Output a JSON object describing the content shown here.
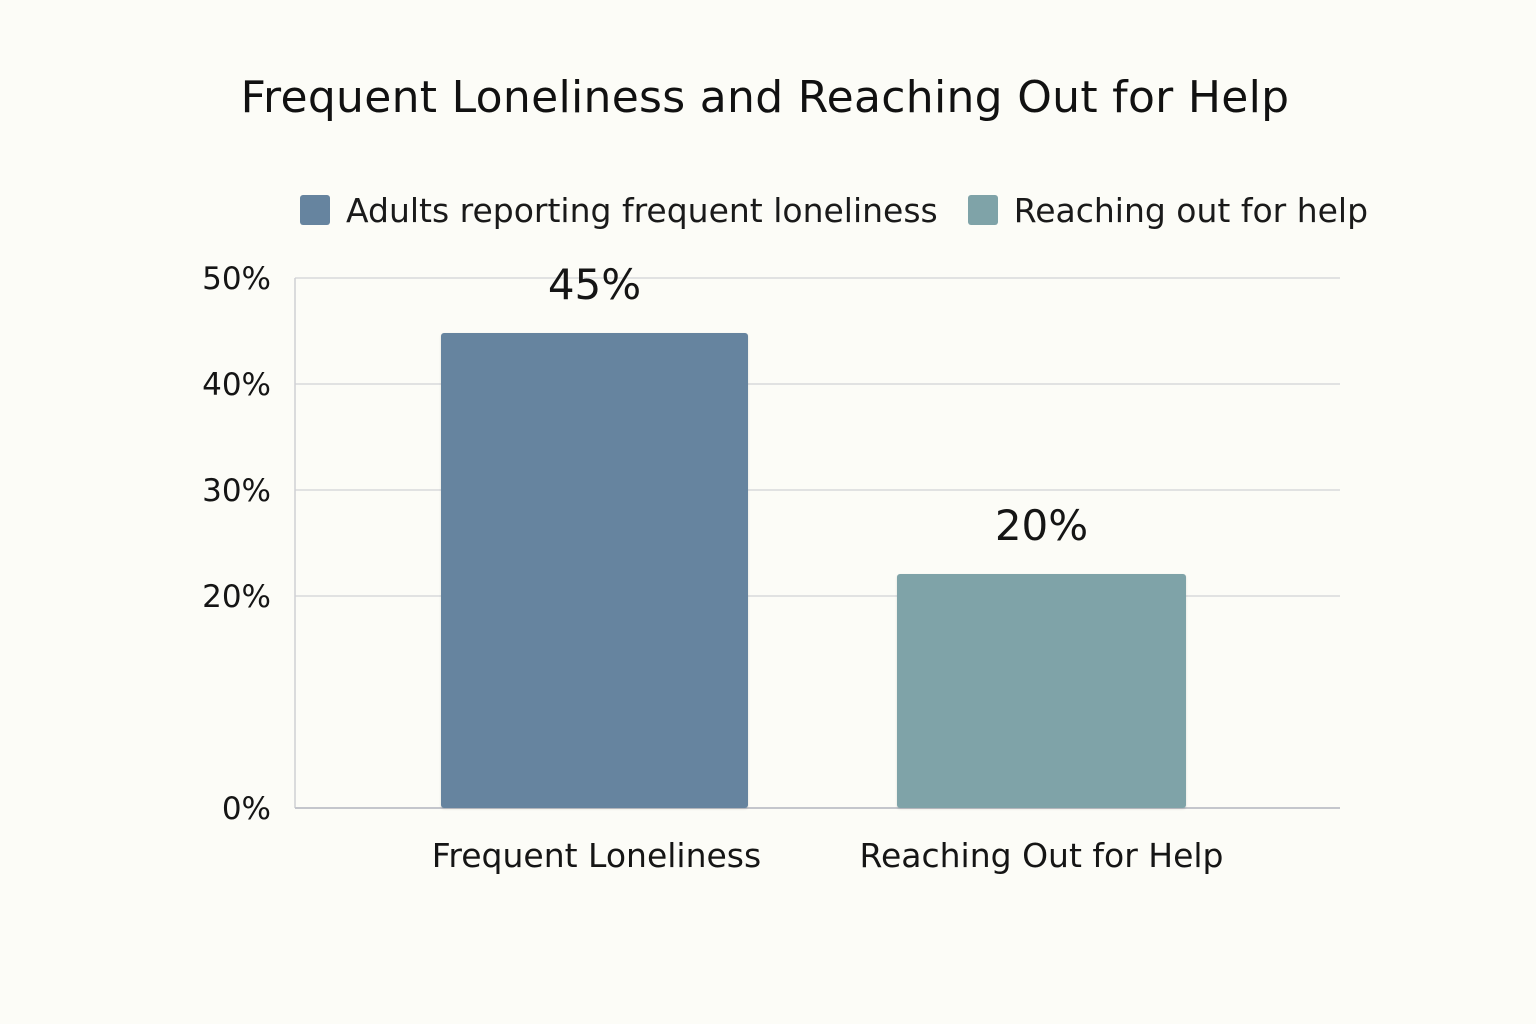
{
  "chart_data": {
    "type": "bar",
    "title": "Frequent Loneliness and Reaching Out for Help",
    "categories": [
      "Frequent Loneliness",
      "Reaching Out for Help"
    ],
    "values": [
      45,
      20
    ],
    "data_labels": [
      "45%",
      "20%"
    ],
    "legend": [
      {
        "name": "Adults reporting frequent loneliness",
        "color": "#66849f"
      },
      {
        "name": "Reaching out for help",
        "color": "#7fa3a8"
      }
    ],
    "bar_colors": [
      "#66849f",
      "#7fa3a8"
    ],
    "y_ticks": [
      0,
      20,
      30,
      40,
      50
    ],
    "y_tick_labels": [
      "0%",
      "20%",
      "30%",
      "40%",
      "50%"
    ],
    "ylim": [
      0,
      50
    ],
    "grid": true,
    "legend_position": "top"
  }
}
